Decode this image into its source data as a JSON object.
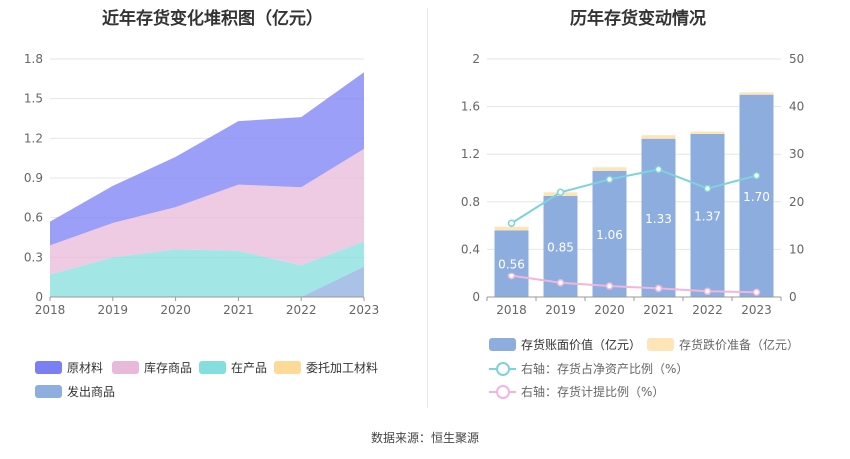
{
  "left_title": "近年存货变化堆积图（亿元）",
  "right_title": "历年存货变动情况",
  "footer": "数据来源：恒生聚源",
  "left_legend": [
    {
      "label": "原材料",
      "color": "#7b7ff4"
    },
    {
      "label": "库存商品",
      "color": "#e9b9d9"
    },
    {
      "label": "在产品",
      "color": "#84dede"
    },
    {
      "label": "委托加工材料",
      "color": "#fdd99a"
    },
    {
      "label": "发出商品",
      "color": "#8eaee0"
    }
  ],
  "right_legend": {
    "bar1": {
      "label": "存货账面价值（亿元）",
      "color": "#8eaddf"
    },
    "bar2": {
      "label": "存货跌价准备（亿元）",
      "color": "#fde5b8"
    },
    "line1": {
      "label": "右轴：存货占净资产比例（%）",
      "color": "#7dd3db"
    },
    "line2": {
      "label": "右轴：存货计提比例（%）",
      "color": "#f0b6dc"
    }
  },
  "chart_data": [
    {
      "type": "area",
      "title": "近年存货变化堆积图（亿元）",
      "stacked": true,
      "categories": [
        "2018",
        "2019",
        "2020",
        "2021",
        "2022",
        "2023"
      ],
      "yticks": [
        "0",
        "0.3",
        "0.6",
        "0.9",
        "1.2",
        "1.5",
        "1.8"
      ],
      "ylim": [
        0,
        1.8
      ],
      "series": [
        {
          "name": "发出商品",
          "color": "#8eaee0",
          "values": [
            0,
            0,
            0,
            0,
            0,
            0.23
          ]
        },
        {
          "name": "委托加工材料",
          "color": "#fdd99a",
          "values": [
            0,
            0,
            0,
            0,
            0,
            0
          ]
        },
        {
          "name": "在产品",
          "color": "#84dede",
          "values": [
            0.17,
            0.3,
            0.36,
            0.35,
            0.24,
            0.19
          ]
        },
        {
          "name": "库存商品",
          "color": "#e9b9d9",
          "values": [
            0.22,
            0.26,
            0.32,
            0.5,
            0.59,
            0.7
          ]
        },
        {
          "name": "原材料",
          "color": "#7b7ff4",
          "values": [
            0.18,
            0.28,
            0.38,
            0.48,
            0.53,
            0.58
          ]
        }
      ]
    },
    {
      "type": "bar",
      "title": "历年存货变动情况",
      "categories": [
        "2018",
        "2019",
        "2020",
        "2021",
        "2022",
        "2023"
      ],
      "yticks_left": [
        "0",
        "0.4",
        "0.8",
        "1.2",
        "1.6",
        "2"
      ],
      "yticks_right": [
        "0",
        "10",
        "20",
        "30",
        "40",
        "50"
      ],
      "ylim_left": [
        0,
        2
      ],
      "ylim_right": [
        0,
        50
      ],
      "bars": [
        {
          "name": "存货账面价值（亿元）",
          "color": "#8eaddf",
          "values": [
            0.56,
            0.85,
            1.06,
            1.33,
            1.37,
            1.7
          ],
          "labels": [
            "0.56",
            "0.85",
            "1.06",
            "1.33",
            "1.37",
            "1.70"
          ]
        },
        {
          "name": "存货跌价准备（亿元）",
          "color": "#fde5b8",
          "values": [
            0.03,
            0.03,
            0.03,
            0.03,
            0.02,
            0.02
          ]
        }
      ],
      "lines": [
        {
          "name": "右轴：存货占净资产比例（%）",
          "color": "#7dd3db",
          "values": [
            15.5,
            22.0,
            24.7,
            26.8,
            22.8,
            25.5
          ]
        },
        {
          "name": "右轴：存货计提比例（%）",
          "color": "#f0b6dc",
          "values": [
            4.5,
            3.0,
            2.3,
            1.8,
            1.2,
            1.0
          ]
        }
      ]
    }
  ]
}
